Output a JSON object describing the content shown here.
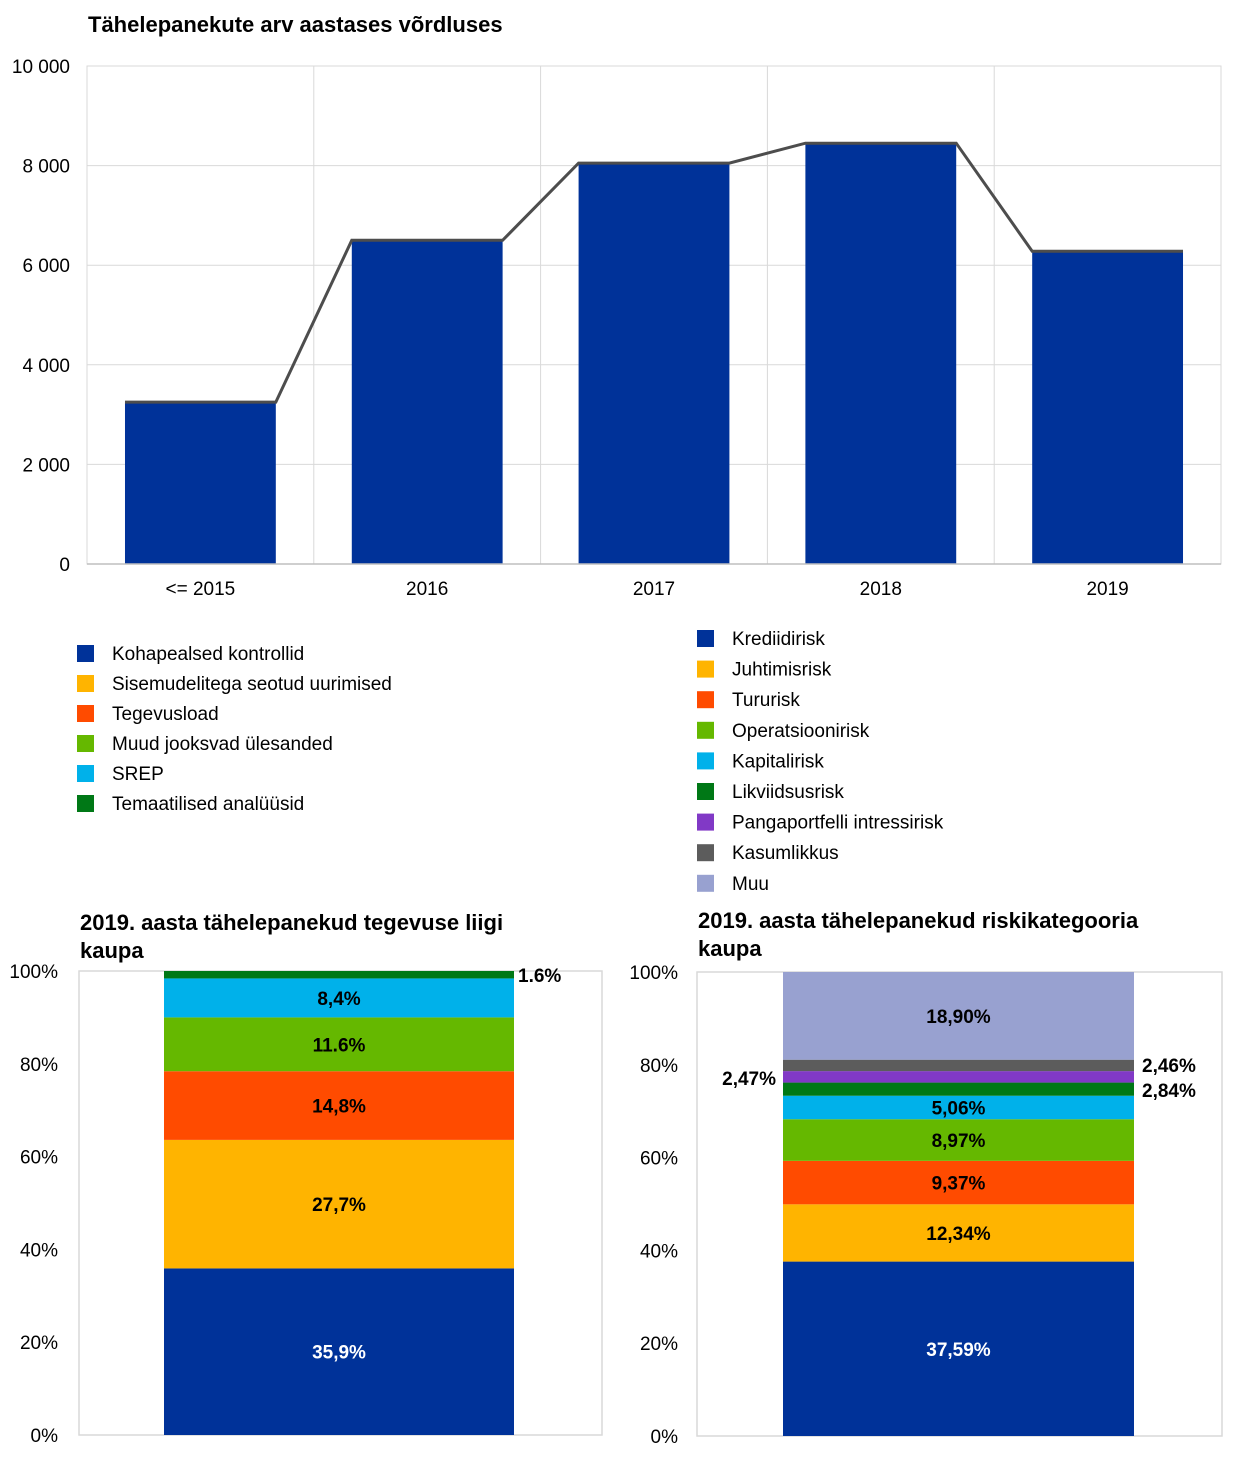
{
  "chart_data": [
    {
      "type": "bar",
      "title": "Tähelepanekute arv aastases võrdluses",
      "categories": [
        "<= 2015",
        "2016",
        "2017",
        "2018",
        "2019"
      ],
      "values": [
        3250,
        6500,
        8050,
        8450,
        6280
      ],
      "overlay_line": true,
      "ylim": [
        0,
        10000
      ],
      "yticks": [
        "0",
        "2 000",
        "4 000",
        "6 000",
        "8 000",
        "10 000"
      ],
      "grid": true,
      "bar_color": "#003299",
      "line_color": "#4d4d4d"
    },
    {
      "type": "bar",
      "stacked": true,
      "title": "2019. aasta tähelepanekud tegevuse liigi kaupa",
      "ylim": [
        0,
        100
      ],
      "yticks": [
        "0%",
        "20%",
        "40%",
        "60%",
        "80%",
        "100%"
      ],
      "legend": [
        "Kohapealsed kontrollid",
        "Sisemudelitega seotud uurimised",
        "Tegevusload",
        "Muud jooksvad ülesanded",
        "SREP",
        "Temaatilised analüüsid"
      ],
      "series": [
        {
          "name": "Kohapealsed kontrollid",
          "value": 35.9,
          "label": "35,9%",
          "color": "#003299",
          "label_color": "#ffffff"
        },
        {
          "name": "Sisemudelitega seotud uurimised",
          "value": 27.7,
          "label": "27,7%",
          "color": "#ffb400",
          "label_color": "#000000"
        },
        {
          "name": "Tegevusload",
          "value": 14.8,
          "label": "14,8%",
          "color": "#ff4b00",
          "label_color": "#000000"
        },
        {
          "name": "Muud jooksvad ülesanded",
          "value": 11.6,
          "label": "11.6%",
          "color": "#65b800",
          "label_color": "#000000"
        },
        {
          "name": "SREP",
          "value": 8.4,
          "label": "8,4%",
          "color": "#00b1ea",
          "label_color": "#000000"
        },
        {
          "name": "Temaatilised analüüsid",
          "value": 1.6,
          "label": "1.6%",
          "color": "#007816",
          "label_color": "#000000",
          "label_outside": "right"
        }
      ]
    },
    {
      "type": "bar",
      "stacked": true,
      "title": "2019. aasta tähelepanekud riskikategooria kaupa",
      "ylim": [
        0,
        100
      ],
      "yticks": [
        "0%",
        "20%",
        "40%",
        "60%",
        "80%",
        "100%"
      ],
      "legend": [
        "Krediidirisk",
        "Juhtimisrisk",
        "Tururisk",
        "Operatsioonirisk",
        "Kapitalirisk",
        "Likviidsusrisk",
        "Pangaportfelli intressirisk",
        "Kasumlikkus",
        "Muu"
      ],
      "series": [
        {
          "name": "Krediidirisk",
          "value": 37.59,
          "label": "37,59%",
          "color": "#003299",
          "label_color": "#ffffff"
        },
        {
          "name": "Juhtimisrisk",
          "value": 12.34,
          "label": "12,34%",
          "color": "#ffb400",
          "label_color": "#000000"
        },
        {
          "name": "Tururisk",
          "value": 9.37,
          "label": "9,37%",
          "color": "#ff4b00",
          "label_color": "#000000"
        },
        {
          "name": "Operatsioonirisk",
          "value": 8.97,
          "label": "8,97%",
          "color": "#65b800",
          "label_color": "#000000"
        },
        {
          "name": "Kapitalirisk",
          "value": 5.06,
          "label": "5,06%",
          "color": "#00b1ea",
          "label_color": "#000000"
        },
        {
          "name": "Likviidsusrisk",
          "value": 2.84,
          "label": "2,84%",
          "color": "#007816",
          "label_color": "#000000",
          "label_outside": "right"
        },
        {
          "name": "Pangaportfelli intressirisk",
          "value": 2.47,
          "label": "2,47%",
          "color": "#8139c6",
          "label_color": "#000000",
          "label_outside": "left"
        },
        {
          "name": "Kasumlikkus",
          "value": 2.46,
          "label": "2,46%",
          "color": "#5c5c5c",
          "label_color": "#000000",
          "label_outside": "right"
        },
        {
          "name": "Muu",
          "value": 18.9,
          "label": "18,90%",
          "color": "#98a1d0",
          "label_color": "#000000"
        }
      ]
    }
  ]
}
